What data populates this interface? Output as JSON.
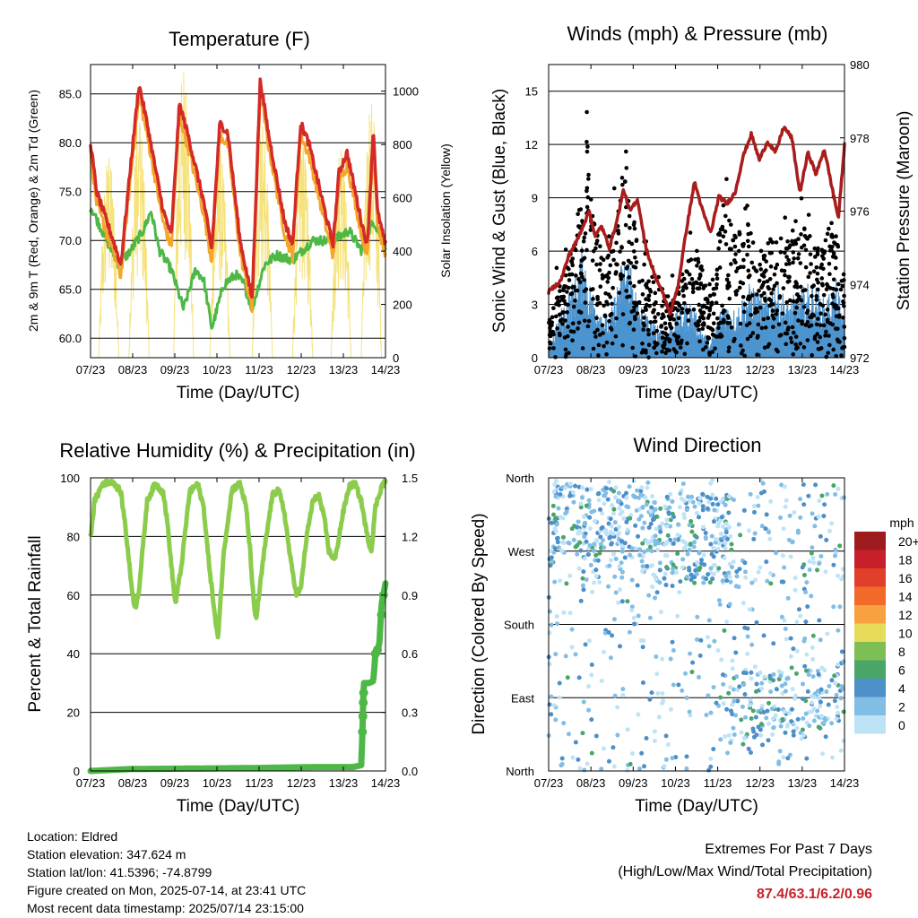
{
  "xticks": [
    "07/23",
    "08/23",
    "09/23",
    "10/23",
    "11/23",
    "12/23",
    "13/23",
    "14/23"
  ],
  "colors": {
    "temp": "#d32a27",
    "temp9": "#f4a62a",
    "dew": "#4eb847",
    "solar": "#f5e27a",
    "wind": "#4d94cf",
    "gust": "#000000",
    "pressure": "#a81c1c",
    "rh": "#8ccc4d",
    "precip": "#4eb847"
  },
  "panels": {
    "temperature": {
      "title": "Temperature (F)",
      "ylabel": "2m & 9m T (Red, Orange) & 2m Td (Green)",
      "y2label": "Solar Insolation (Yellow)",
      "xlabel": "Time (Day/UTC)",
      "yticks": [
        "60.0",
        "65.0",
        "70.0",
        "75.0",
        "80.0",
        "85.0"
      ],
      "y2ticks": [
        "0",
        "200",
        "400",
        "600",
        "800",
        "1000"
      ]
    },
    "winds": {
      "title": "Winds (mph) & Pressure (mb)",
      "ylabel": "Sonic Wind & Gust (Blue, Black)",
      "y2label": "Station Pressure (Maroon)",
      "xlabel": "Time (Day/UTC)",
      "yticks": [
        "0",
        "3",
        "6",
        "9",
        "12",
        "15"
      ],
      "y2ticks": [
        "972",
        "974",
        "976",
        "978",
        "980"
      ]
    },
    "humidity": {
      "title": "Relative Humidity (%) & Precipitation (in)",
      "ylabel": "Percent & Total Rainfall",
      "xlabel": "Time (Day/UTC)",
      "yticks": [
        "0",
        "20",
        "40",
        "60",
        "80",
        "100"
      ],
      "y2ticks": [
        "0.0",
        "0.3",
        "0.6",
        "0.9",
        "1.2",
        "1.5"
      ]
    },
    "direction": {
      "title": "Wind Direction",
      "ylabel": "Direction (Colored By Speed)",
      "xlabel": "Time (Day/UTC)",
      "yticks": [
        "North",
        "East",
        "South",
        "West",
        "North"
      ],
      "legend_title": "mph",
      "legend_labels": [
        "20+",
        "18",
        "16",
        "14",
        "12",
        "10",
        "8",
        "6",
        "4",
        "2",
        "0"
      ],
      "legend_colors": [
        "#9e1b1e",
        "#c8202a",
        "#e0402a",
        "#f26a2a",
        "#f7a140",
        "#e6dc5a",
        "#7dbf55",
        "#4aa668",
        "#4d8fc9",
        "#82bde6",
        "#bfe3f6"
      ]
    }
  },
  "chart_data": [
    {
      "type": "line",
      "title": "Temperature (F)",
      "xlabel": "Time (Day/UTC)",
      "ylabel": "2m & 9m T (Red, Orange) & 2m Td (Green)",
      "y2label": "Solar Insolation (Yellow)",
      "x_range": [
        "07/23",
        "14/23"
      ],
      "ylim": [
        58,
        88
      ],
      "y2lim": [
        0,
        1100
      ],
      "series": [
        {
          "name": "2m T",
          "color": "red",
          "points": [
            [
              0,
              80
            ],
            [
              0.15,
              75
            ],
            [
              0.6,
              69.5
            ],
            [
              0.75,
              67.5
            ],
            [
              1.0,
              78
            ],
            [
              1.2,
              86
            ],
            [
              1.4,
              82
            ],
            [
              1.8,
              73
            ],
            [
              2.0,
              70.5
            ],
            [
              2.2,
              84
            ],
            [
              2.4,
              81
            ],
            [
              2.8,
              74
            ],
            [
              3.0,
              69
            ],
            [
              3.2,
              82
            ],
            [
              3.4,
              81
            ],
            [
              3.7,
              70
            ],
            [
              4.0,
              64
            ],
            [
              4.2,
              86.5
            ],
            [
              4.4,
              81
            ],
            [
              4.8,
              72
            ],
            [
              5.0,
              69.5
            ],
            [
              5.2,
              82
            ],
            [
              5.4,
              80
            ],
            [
              5.8,
              73
            ],
            [
              6.0,
              69.5
            ],
            [
              6.15,
              77
            ],
            [
              6.35,
              79
            ],
            [
              6.7,
              72
            ],
            [
              6.85,
              69.5
            ],
            [
              7.0,
              81.5
            ],
            [
              7.1,
              73
            ],
            [
              7.3,
              69.5
            ]
          ]
        },
        {
          "name": "9m T",
          "color": "orange",
          "points": [
            [
              0,
              79
            ],
            [
              0.7,
              68
            ],
            [
              1.0,
              77
            ],
            [
              1.2,
              83
            ],
            [
              1.4,
              80
            ],
            [
              2.2,
              82
            ],
            [
              3.2,
              80
            ],
            [
              4.2,
              84
            ],
            [
              5.2,
              80
            ],
            [
              6.3,
              77
            ],
            [
              7.0,
              79.5
            ],
            [
              7.3,
              69.5
            ]
          ]
        },
        {
          "name": "2m Td",
          "color": "green",
          "points": [
            [
              0,
              73.5
            ],
            [
              0.4,
              70
            ],
            [
              0.7,
              67.5
            ],
            [
              1.0,
              69
            ],
            [
              1.3,
              71
            ],
            [
              1.5,
              73
            ],
            [
              1.7,
              69
            ],
            [
              2.0,
              67
            ],
            [
              2.3,
              63
            ],
            [
              2.6,
              67
            ],
            [
              2.8,
              66
            ],
            [
              3.0,
              61
            ],
            [
              3.3,
              65.5
            ],
            [
              3.6,
              66.5
            ],
            [
              3.8,
              65.5
            ],
            [
              4.0,
              63
            ],
            [
              4.3,
              67.5
            ],
            [
              4.6,
              68.5
            ],
            [
              5.0,
              68
            ],
            [
              5.5,
              70
            ],
            [
              6.0,
              70
            ],
            [
              6.4,
              71
            ],
            [
              6.7,
              69
            ],
            [
              7.0,
              72
            ],
            [
              7.3,
              69.5
            ]
          ]
        },
        {
          "name": "Solar Insolation",
          "color": "yellow",
          "axis": "right",
          "peaks": [
            [
              0.45,
              750
            ],
            [
              1.2,
              880
            ],
            [
              2.3,
              1070
            ],
            [
              3.2,
              780
            ],
            [
              4.25,
              870
            ],
            [
              5.25,
              800
            ],
            [
              6.2,
              780
            ],
            [
              6.95,
              950
            ]
          ]
        }
      ]
    },
    {
      "type": "line",
      "title": "Winds (mph) & Pressure (mb)",
      "xlabel": "Time (Day/UTC)",
      "ylabel": "Sonic Wind & Gust (Blue, Black)",
      "y2label": "Station Pressure (Maroon)",
      "x_range": [
        "07/23",
        "14/23"
      ],
      "ylim": [
        0,
        16.5
      ],
      "y2lim": [
        972,
        980
      ],
      "series": [
        {
          "name": "Station Pressure",
          "color": "maroon",
          "axis": "right",
          "points": [
            [
              0,
              973.8
            ],
            [
              0.3,
              974.1
            ],
            [
              0.5,
              974.8
            ],
            [
              0.7,
              975.2
            ],
            [
              0.85,
              975.6
            ],
            [
              1.0,
              976.0
            ],
            [
              1.15,
              975.3
            ],
            [
              1.3,
              975.6
            ],
            [
              1.5,
              975.0
            ],
            [
              1.7,
              975.8
            ],
            [
              1.85,
              976.6
            ],
            [
              2.0,
              976.0
            ],
            [
              2.2,
              976.3
            ],
            [
              2.4,
              975.0
            ],
            [
              2.6,
              974.3
            ],
            [
              2.8,
              973.8
            ],
            [
              3.0,
              973.2
            ],
            [
              3.2,
              974.0
            ],
            [
              3.4,
              975.5
            ],
            [
              3.6,
              976.8
            ],
            [
              3.8,
              976.0
            ],
            [
              4.0,
              975.4
            ],
            [
              4.2,
              976.4
            ],
            [
              4.4,
              976.2
            ],
            [
              4.6,
              976.5
            ],
            [
              4.8,
              977.5
            ],
            [
              5.0,
              978.1
            ],
            [
              5.2,
              977.4
            ],
            [
              5.4,
              977.9
            ],
            [
              5.6,
              977.6
            ],
            [
              5.8,
              978.3
            ],
            [
              6.0,
              978.0
            ],
            [
              6.2,
              976.5
            ],
            [
              6.4,
              977.6
            ],
            [
              6.6,
              977.0
            ],
            [
              6.8,
              977.7
            ],
            [
              7.0,
              976.6
            ],
            [
              7.15,
              975.8
            ],
            [
              7.3,
              977.8
            ]
          ]
        },
        {
          "name": "Sonic Wind",
          "color": "blue",
          "typical_range": [
            0,
            6
          ]
        },
        {
          "name": "Gust",
          "color": "black",
          "typical_range": [
            0,
            14.5
          ]
        }
      ]
    },
    {
      "type": "line",
      "title": "Relative Humidity (%) & Precipitation (in)",
      "xlabel": "Time (Day/UTC)",
      "ylabel": "Percent & Total Rainfall",
      "x_range": [
        "07/23",
        "14/23"
      ],
      "ylim": [
        0,
        100
      ],
      "y2lim": [
        0,
        1.5
      ],
      "series": [
        {
          "name": "Relative Humidity",
          "color": "light green",
          "points": [
            [
              0,
              80
            ],
            [
              0.1,
              92
            ],
            [
              0.3,
              98
            ],
            [
              0.55,
              99
            ],
            [
              0.75,
              95
            ],
            [
              0.85,
              85
            ],
            [
              1.0,
              65
            ],
            [
              1.1,
              55
            ],
            [
              1.2,
              62
            ],
            [
              1.4,
              92
            ],
            [
              1.6,
              98
            ],
            [
              1.8,
              95
            ],
            [
              1.9,
              85
            ],
            [
              2.0,
              70
            ],
            [
              2.1,
              57
            ],
            [
              2.25,
              70
            ],
            [
              2.45,
              95
            ],
            [
              2.65,
              98
            ],
            [
              2.8,
              90
            ],
            [
              2.9,
              75
            ],
            [
              3.1,
              50
            ],
            [
              3.15,
              45
            ],
            [
              3.3,
              75
            ],
            [
              3.5,
              96
            ],
            [
              3.7,
              98
            ],
            [
              3.85,
              90
            ],
            [
              3.95,
              75
            ],
            [
              4.05,
              55
            ],
            [
              4.1,
              52
            ],
            [
              4.3,
              75
            ],
            [
              4.5,
              94
            ],
            [
              4.65,
              96
            ],
            [
              4.8,
              88
            ],
            [
              4.95,
              72
            ],
            [
              5.1,
              60
            ],
            [
              5.2,
              62
            ],
            [
              5.35,
              80
            ],
            [
              5.5,
              92
            ],
            [
              5.65,
              94
            ],
            [
              5.8,
              85
            ],
            [
              5.9,
              75
            ],
            [
              6.05,
              72
            ],
            [
              6.25,
              88
            ],
            [
              6.4,
              97
            ],
            [
              6.55,
              98
            ],
            [
              6.7,
              92
            ],
            [
              6.85,
              80
            ],
            [
              6.95,
              75
            ],
            [
              7.05,
              90
            ],
            [
              7.2,
              97
            ],
            [
              7.3,
              99
            ]
          ]
        },
        {
          "name": "Total Precipitation",
          "color": "green",
          "axis": "right",
          "points": [
            [
              0,
              0
            ],
            [
              1.0,
              0.01
            ],
            [
              4.0,
              0.015
            ],
            [
              5.5,
              0.02
            ],
            [
              6.5,
              0.02
            ],
            [
              6.7,
              0.03
            ],
            [
              6.73,
              0.2
            ],
            [
              6.76,
              0.45
            ],
            [
              6.9,
              0.45
            ],
            [
              7.0,
              0.46
            ],
            [
              7.05,
              0.6
            ],
            [
              7.15,
              0.65
            ],
            [
              7.2,
              0.85
            ],
            [
              7.3,
              0.96
            ]
          ]
        }
      ]
    },
    {
      "type": "scatter",
      "title": "Wind Direction",
      "xlabel": "Time (Day/UTC)",
      "ylabel": "Direction (Colored By Speed)",
      "x_range": [
        "07/23",
        "14/23"
      ],
      "y_categories": [
        "North",
        "East",
        "South",
        "West",
        "North"
      ],
      "color_by": "speed (mph)",
      "clusters": [
        {
          "x": [
            0.5,
            1.2
          ],
          "direction": "West to North"
        },
        {
          "x": [
            1.5,
            2.2
          ],
          "direction": "West to North"
        },
        {
          "x": [
            3.0,
            4.5
          ],
          "direction": "West"
        },
        {
          "x": [
            4.5,
            7.3
          ],
          "direction": "East"
        }
      ]
    }
  ],
  "info": {
    "location": "Location: Eldred",
    "elevation": "Station elevation: 347.624 m",
    "latlon": "Station lat/lon: 41.5396; -74.8799",
    "created": "Figure created on Mon, 2025-07-14, at 23:41 UTC",
    "recent": "Most recent data timestamp: 2025/07/14 23:15:00"
  },
  "extremes": {
    "line1": "Extremes For Past 7 Days",
    "line2": "(High/Low/Max Wind/Total Precipitation)",
    "value": "87.4/63.1/6.2/0.96"
  }
}
